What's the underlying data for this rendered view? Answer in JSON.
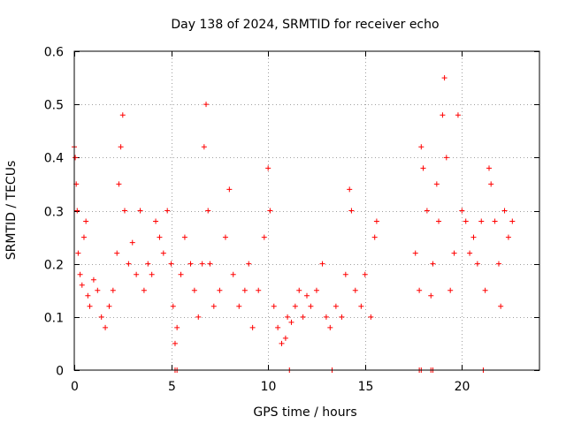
{
  "chart_data": {
    "type": "scatter",
    "title": "Day 138 of 2024, SRMTID for receiver echo",
    "xlabel": "GPS time / hours",
    "ylabel": "SRMTID / TECUs",
    "xlim": [
      0,
      24
    ],
    "ylim": [
      0,
      0.6
    ],
    "xticks": [
      0,
      5,
      10,
      15,
      20
    ],
    "yticks": [
      0,
      0.1,
      0.2,
      0.3,
      0.4,
      0.5,
      0.6
    ],
    "xtick_labels": [
      "0",
      "5",
      "10",
      "15",
      "20"
    ],
    "ytick_labels": [
      "0",
      "0.1",
      "0.2",
      "0.3",
      "0.4",
      "0.5",
      "0.6"
    ],
    "grid": true,
    "marker": "plus",
    "color": "#ff0000",
    "series": [
      {
        "name": "SRMTID",
        "points": [
          [
            0.0,
            0.42
          ],
          [
            0.05,
            0.4
          ],
          [
            0.1,
            0.35
          ],
          [
            0.15,
            0.3
          ],
          [
            0.2,
            0.22
          ],
          [
            0.3,
            0.18
          ],
          [
            0.4,
            0.16
          ],
          [
            0.5,
            0.25
          ],
          [
            0.6,
            0.28
          ],
          [
            0.7,
            0.14
          ],
          [
            0.8,
            0.12
          ],
          [
            1.0,
            0.17
          ],
          [
            1.2,
            0.15
          ],
          [
            1.4,
            0.1
          ],
          [
            1.6,
            0.08
          ],
          [
            1.8,
            0.12
          ],
          [
            2.0,
            0.15
          ],
          [
            2.2,
            0.22
          ],
          [
            2.3,
            0.35
          ],
          [
            2.4,
            0.42
          ],
          [
            2.5,
            0.48
          ],
          [
            2.6,
            0.3
          ],
          [
            2.8,
            0.2
          ],
          [
            3.0,
            0.24
          ],
          [
            3.2,
            0.18
          ],
          [
            3.4,
            0.3
          ],
          [
            3.6,
            0.15
          ],
          [
            3.8,
            0.2
          ],
          [
            4.0,
            0.18
          ],
          [
            4.2,
            0.28
          ],
          [
            4.4,
            0.25
          ],
          [
            4.6,
            0.22
          ],
          [
            4.8,
            0.3
          ],
          [
            5.0,
            0.2
          ],
          [
            5.1,
            0.12
          ],
          [
            5.2,
            0.05
          ],
          [
            5.3,
            0.08
          ],
          [
            5.5,
            0.18
          ],
          [
            5.7,
            0.25
          ],
          [
            6.0,
            0.2
          ],
          [
            6.2,
            0.15
          ],
          [
            6.4,
            0.1
          ],
          [
            6.6,
            0.2
          ],
          [
            6.7,
            0.42
          ],
          [
            6.8,
            0.5
          ],
          [
            6.9,
            0.3
          ],
          [
            7.0,
            0.2
          ],
          [
            7.2,
            0.12
          ],
          [
            7.5,
            0.15
          ],
          [
            7.8,
            0.25
          ],
          [
            8.0,
            0.34
          ],
          [
            8.2,
            0.18
          ],
          [
            8.5,
            0.12
          ],
          [
            8.8,
            0.15
          ],
          [
            9.0,
            0.2
          ],
          [
            9.2,
            0.08
          ],
          [
            9.5,
            0.15
          ],
          [
            9.8,
            0.25
          ],
          [
            10.0,
            0.38
          ],
          [
            10.1,
            0.3
          ],
          [
            10.3,
            0.12
          ],
          [
            10.5,
            0.08
          ],
          [
            10.7,
            0.05
          ],
          [
            10.9,
            0.06
          ],
          [
            11.0,
            0.1
          ],
          [
            11.2,
            0.09
          ],
          [
            11.4,
            0.12
          ],
          [
            11.6,
            0.15
          ],
          [
            11.8,
            0.1
          ],
          [
            12.0,
            0.14
          ],
          [
            12.2,
            0.12
          ],
          [
            12.5,
            0.15
          ],
          [
            12.8,
            0.2
          ],
          [
            13.0,
            0.1
          ],
          [
            13.2,
            0.08
          ],
          [
            13.5,
            0.12
          ],
          [
            13.8,
            0.1
          ],
          [
            14.0,
            0.18
          ],
          [
            14.2,
            0.34
          ],
          [
            14.3,
            0.3
          ],
          [
            14.5,
            0.15
          ],
          [
            14.8,
            0.12
          ],
          [
            15.0,
            0.18
          ],
          [
            15.3,
            0.1
          ],
          [
            15.5,
            0.25
          ],
          [
            15.6,
            0.28
          ],
          [
            17.6,
            0.22
          ],
          [
            17.8,
            0.15
          ],
          [
            17.9,
            0.42
          ],
          [
            18.0,
            0.38
          ],
          [
            18.2,
            0.3
          ],
          [
            18.4,
            0.14
          ],
          [
            18.5,
            0.2
          ],
          [
            18.7,
            0.35
          ],
          [
            18.8,
            0.28
          ],
          [
            19.0,
            0.48
          ],
          [
            19.1,
            0.55
          ],
          [
            19.2,
            0.4
          ],
          [
            19.4,
            0.15
          ],
          [
            19.6,
            0.22
          ],
          [
            19.8,
            0.48
          ],
          [
            20.0,
            0.3
          ],
          [
            20.2,
            0.28
          ],
          [
            20.4,
            0.22
          ],
          [
            20.6,
            0.25
          ],
          [
            20.8,
            0.2
          ],
          [
            21.0,
            0.28
          ],
          [
            21.2,
            0.15
          ],
          [
            21.4,
            0.38
          ],
          [
            21.5,
            0.35
          ],
          [
            21.7,
            0.28
          ],
          [
            21.9,
            0.2
          ],
          [
            22.0,
            0.12
          ],
          [
            22.2,
            0.3
          ],
          [
            22.4,
            0.25
          ],
          [
            22.6,
            0.28
          ],
          [
            5.2,
            0.0
          ],
          [
            5.3,
            0.0
          ],
          [
            11.1,
            0.0
          ],
          [
            13.3,
            0.0
          ],
          [
            17.8,
            0.0
          ],
          [
            17.9,
            0.0
          ],
          [
            18.4,
            0.0
          ],
          [
            18.5,
            0.0
          ],
          [
            21.1,
            0.0
          ]
        ]
      }
    ]
  }
}
